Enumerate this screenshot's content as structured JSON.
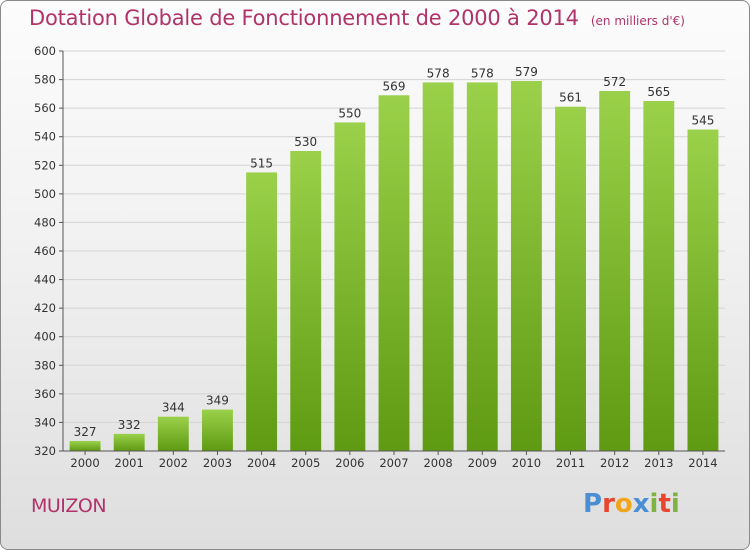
{
  "title": "Dotation Globale de Fonctionnement de 2000 à 2014",
  "unit_note": "(en milliers d'€)",
  "commune": "MUIZON",
  "logo": {
    "text": "Proxiti",
    "letter_colors": [
      "#4a8fd4",
      "#e8442e",
      "#f2a51a",
      "#4a8fd4",
      "#7cb342",
      "#e8442e",
      "#7cb342"
    ]
  },
  "colors": {
    "title": "#b0336a",
    "bar_top": "#9bd14a",
    "bar_bottom": "#5e9a12",
    "grid": "#d4d4d4",
    "axis": "#555555"
  },
  "chart_data": {
    "type": "bar",
    "categories": [
      "2000",
      "2001",
      "2002",
      "2003",
      "2004",
      "2005",
      "2006",
      "2007",
      "2008",
      "2009",
      "2010",
      "2011",
      "2012",
      "2013",
      "2014"
    ],
    "values": [
      327,
      332,
      344,
      349,
      515,
      530,
      550,
      569,
      578,
      578,
      579,
      561,
      572,
      565,
      545
    ],
    "ylim": [
      320,
      600
    ],
    "yticks": [
      320,
      340,
      360,
      380,
      400,
      420,
      440,
      460,
      480,
      500,
      520,
      540,
      560,
      580,
      600
    ],
    "grid": true,
    "data_labels": true
  }
}
